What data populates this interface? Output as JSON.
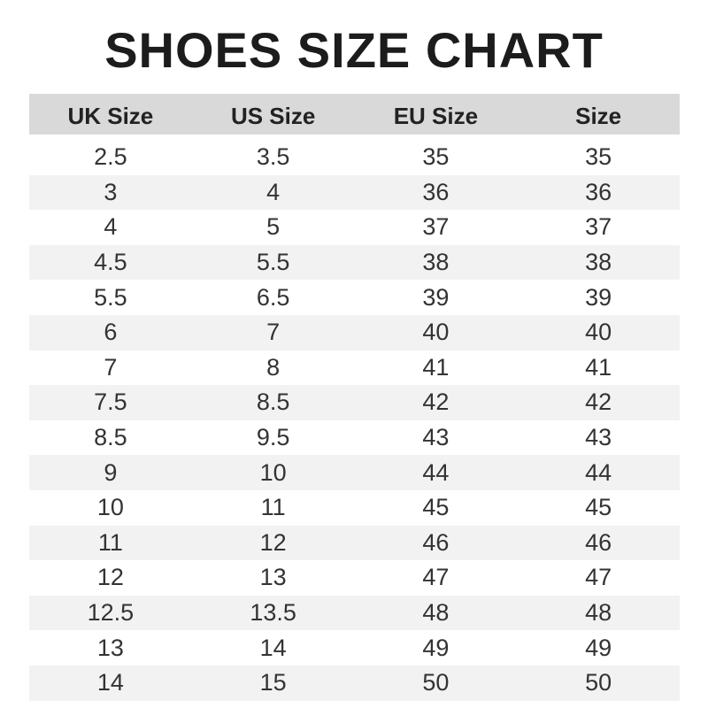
{
  "title": "SHOES SIZE CHART",
  "headers": [
    "UK Size",
    "US Size",
    "EU Size",
    "Size"
  ],
  "rows": [
    [
      "2.5",
      "3.5",
      "35",
      "35"
    ],
    [
      "3",
      "4",
      "36",
      "36"
    ],
    [
      "4",
      "5",
      "37",
      "37"
    ],
    [
      "4.5",
      "5.5",
      "38",
      "38"
    ],
    [
      "5.5",
      "6.5",
      "39",
      "39"
    ],
    [
      "6",
      "7",
      "40",
      "40"
    ],
    [
      "7",
      "8",
      "41",
      "41"
    ],
    [
      "7.5",
      "8.5",
      "42",
      "42"
    ],
    [
      "8.5",
      "9.5",
      "43",
      "43"
    ],
    [
      "9",
      "10",
      "44",
      "44"
    ],
    [
      "10",
      "11",
      "45",
      "45"
    ],
    [
      "11",
      "12",
      "46",
      "46"
    ],
    [
      "12",
      "13",
      "47",
      "47"
    ],
    [
      "12.5",
      "13.5",
      "48",
      "48"
    ],
    [
      "13",
      "14",
      "49",
      "49"
    ],
    [
      "14",
      "15",
      "50",
      "50"
    ]
  ],
  "colors": {
    "header_bg": "#d9d9d9",
    "stripe_bg": "#f2f2f2",
    "title": "#1c1c1c"
  }
}
